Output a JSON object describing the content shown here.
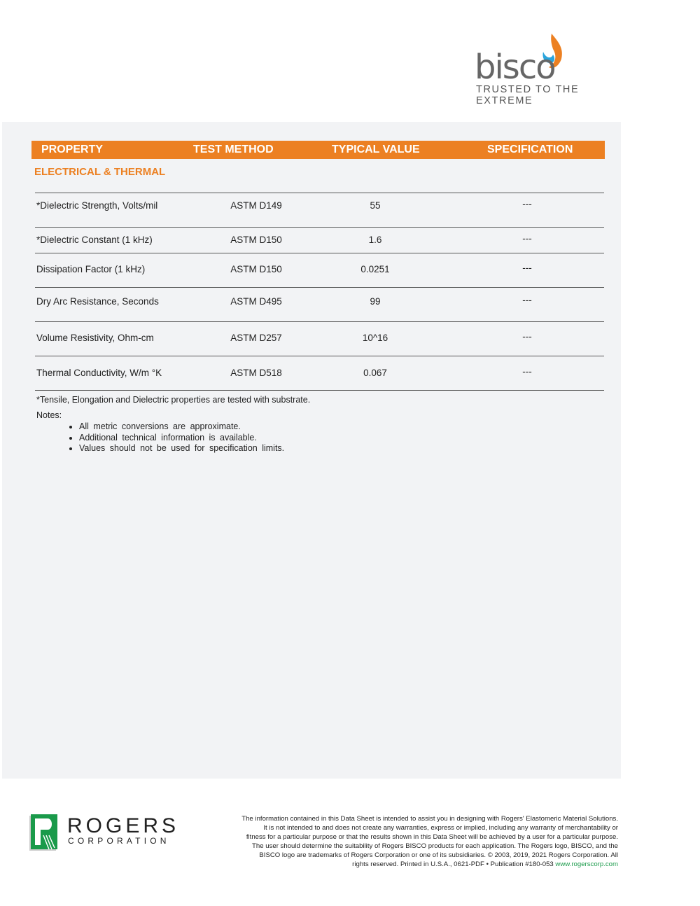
{
  "brand": {
    "name": "bisco",
    "tagline": "TRUSTED TO THE EXTREME",
    "colors": {
      "orange": "#ec8022",
      "blue": "#2aa4dc",
      "gray": "#666666"
    }
  },
  "table": {
    "headers": [
      "PROPERTY",
      "TEST METHOD",
      "TYPICAL VALUE",
      "SPECIFICATION"
    ],
    "section": "ELECTRICAL & THERMAL",
    "rows": [
      {
        "property": "*Dielectric Strength, Volts/mil",
        "method": "ASTM D149",
        "value": "55",
        "spec": "---"
      },
      {
        "property": "*Dielectric Constant (1 kHz)",
        "method": "ASTM D150",
        "value": "1.6",
        "spec": "---"
      },
      {
        "property": "Dissipation Factor (1 kHz)",
        "method": "ASTM D150",
        "value": "0.0251",
        "spec": "---"
      },
      {
        "property": "Dry Arc Resistance, Seconds",
        "method": "ASTM D495",
        "value": "99",
        "spec": "---"
      },
      {
        "property": "Volume Resistivity, Ohm-cm",
        "method": "ASTM D257",
        "value": "10^16",
        "spec": "---"
      },
      {
        "property": "Thermal Conductivity, W/m °K",
        "method": "ASTM D518",
        "value": "0.067",
        "spec": "---"
      }
    ]
  },
  "footnote": "*Tensile, Elongation and Dielectric properties are tested with substrate.",
  "notes": {
    "label": "Notes:",
    "items": [
      "All metric conversions are approximate.",
      "Additional technical information is available.",
      "Values should not be used for specification limits."
    ]
  },
  "footer": {
    "logo": {
      "word": "ROGERS",
      "sub": "CORPORATION"
    },
    "lines": [
      "The information contained in this Data Sheet is intended to assist you in designing with Rogers' Elastomeric Material Solutions.",
      "It is not intended to and does not create any warranties, express or implied, including any warranty of merchantability or",
      "fitness for a particular purpose or that the results shown in this Data Sheet will be achieved by a user for a particular purpose.",
      "The user should determine the suitability of Rogers BISCO products for each application. The Rogers logo, BISCO, and the",
      "BISCO logo are  trademarks of Rogers Corporation or one of its subsidiaries.  © 2003, 2019, 2021 Rogers Corporation.  All",
      "rights reserved. Printed in U.S.A., 0621-PDF • Publication #180-053 "
    ],
    "url": "www.rogerscorp.com"
  }
}
